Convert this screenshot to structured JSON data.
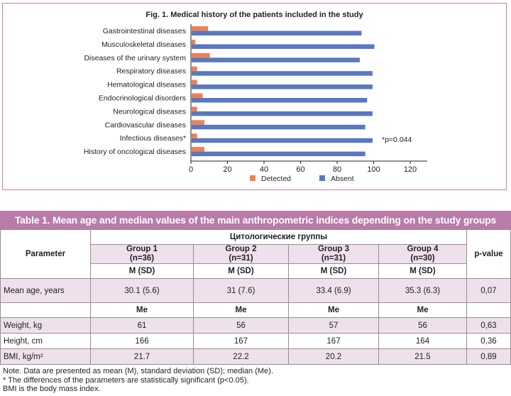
{
  "figure": {
    "title": "Fig. 1. Medical history of the patients included in the study",
    "annotation": "*p=0.044"
  },
  "chart_data": {
    "type": "bar",
    "orientation": "horizontal",
    "title": "Fig. 1. Medical history of the patients included in the study",
    "categories": [
      "Gastrointestinal diseases",
      "Musculoskeletal diseases",
      "Diseases of the urinary system",
      "Respiratory diseases",
      "Hematological diseases",
      "Endocrinological disorders",
      "Neurological diseases",
      "Cardiovascular diseases",
      "Infectious diseases*",
      "History of oncological diseases"
    ],
    "series": [
      {
        "name": "Detected",
        "color": "#f08050",
        "values": [
          9,
          2,
          10,
          3,
          3,
          6,
          3,
          7,
          3,
          7
        ]
      },
      {
        "name": "Absent",
        "color": "#5a78c0",
        "values": [
          93,
          100,
          92,
          99,
          99,
          96,
          99,
          95,
          99,
          95
        ]
      }
    ],
    "xlim": [
      0,
      120
    ],
    "xticks": [
      "0",
      "20",
      "40",
      "60",
      "80",
      "100",
      "120"
    ],
    "legend": "bottom",
    "grid": false
  },
  "table": {
    "title": "Table 1. Mean age and median values of the main anthropometric indices depending on the study groups",
    "param_header": "Parameter",
    "group_header": "Цитологические группы",
    "p_header": "p-value",
    "groups": [
      {
        "name": "Group 1",
        "n": "(n=36)"
      },
      {
        "name": "Group 2",
        "n": "(n=31)"
      },
      {
        "name": "Group 3",
        "n": "(n=31)"
      },
      {
        "name": "Group 4",
        "n": "(n=30)"
      }
    ],
    "msd": "M (SD)",
    "me": "Me",
    "rows": [
      {
        "label": "Mean age, years",
        "values": [
          "30.1 (5.6)",
          "31 (7.6)",
          "33.4 (6.9)",
          "35.3 (6.3)"
        ],
        "p": "0,07"
      },
      {
        "label": "Weight, kg",
        "values": [
          "61",
          "56",
          "57",
          "56"
        ],
        "p": "0,63"
      },
      {
        "label": "Height, cm",
        "values": [
          "166",
          "167",
          "167",
          "164"
        ],
        "p": "0,36"
      },
      {
        "label": "BMI, kg/m²",
        "values": [
          "21.7",
          "22.2",
          "20.2",
          "21.5"
        ],
        "p": "0,89"
      }
    ]
  },
  "notes": [
    "Note. Data are presented as mean (M), standard deviation (SD); median (Me).",
    "* The differences of the parameters are statistically significant (p<0.05).",
    "BMI is the body mass index."
  ]
}
